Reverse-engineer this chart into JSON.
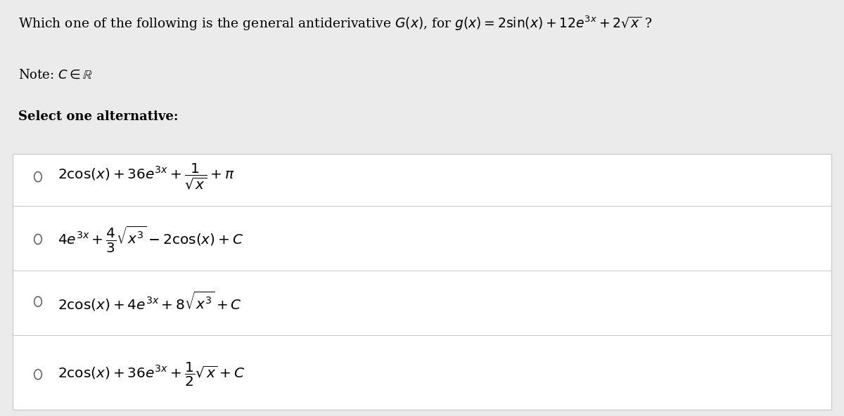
{
  "bg_color": "#ebebeb",
  "white": "#ffffff",
  "text_color": "#000000",
  "title": "Which one of the following is the general antiderivative $G(x)$, for $g(x) = 2\\sin(x) + 12e^{3x} + 2\\sqrt{x}$ ?",
  "note": "Note: $C \\in \\mathbb{R}$",
  "select": "Select one alternative:",
  "options": [
    "$2\\cos(x) + 36e^{3x} + \\dfrac{1}{\\sqrt{x}} + \\pi$",
    "$4e^{3x} + \\dfrac{4}{3}\\sqrt{x^3} - 2\\cos(x) + C$",
    "$2\\cos(x) + 4e^{3x} + 8\\sqrt{x^3} + C$",
    "$2\\cos(x) + 36e^{3x} + \\dfrac{1}{2}\\sqrt{x} + C$"
  ],
  "figsize": [
    12.0,
    5.92
  ],
  "dpi": 100
}
